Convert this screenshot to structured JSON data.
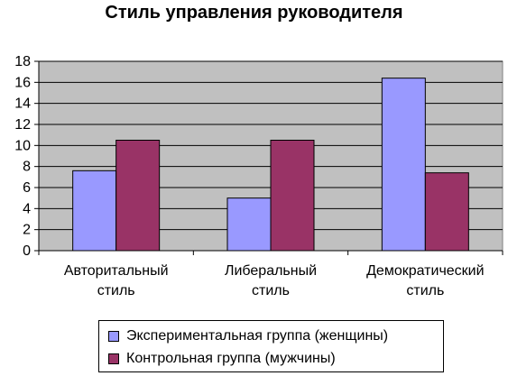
{
  "chart_data": {
    "type": "bar",
    "title": "Стиль управления руководителя",
    "categories": [
      [
        "Авторитальный",
        "стиль"
      ],
      [
        "Либеральный",
        "стиль"
      ],
      [
        "Демократический",
        "стиль"
      ]
    ],
    "series": [
      {
        "name": "Экспериментальная группа (женщины)",
        "values": [
          7.6,
          5.0,
          16.4
        ],
        "color": "#9999ff"
      },
      {
        "name": "Контрольная группа (мужчины)",
        "values": [
          10.5,
          10.5,
          7.4
        ],
        "color": "#993366"
      }
    ],
    "ylim": [
      0,
      18
    ],
    "yticks": [
      0,
      2,
      4,
      6,
      8,
      10,
      12,
      14,
      16,
      18
    ],
    "plot_background": "#c0c0c0",
    "grid": true,
    "legend_position": "bottom"
  }
}
